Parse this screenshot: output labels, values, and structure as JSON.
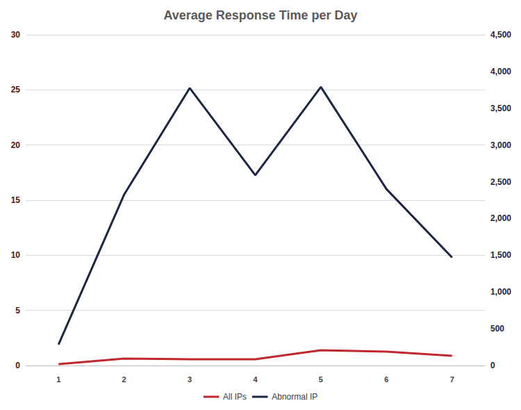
{
  "chart_data": {
    "type": "line",
    "title": "Average Response Time per Day",
    "categories": [
      "1",
      "2",
      "3",
      "4",
      "5",
      "6",
      "7"
    ],
    "series": [
      {
        "name": "All IPs",
        "color": "#c0262d",
        "values": [
          0.13,
          0.63,
          0.57,
          0.57,
          1.39,
          1.26,
          0.88
        ]
      },
      {
        "name": "Abnormal IP",
        "color": "#1c2541",
        "axis": "y2",
        "values": [
          285,
          2325,
          3775,
          2590,
          3790,
          2400,
          1470
        ]
      }
    ],
    "ylim": [
      0,
      30
    ],
    "yticks": [
      0,
      5,
      10,
      15,
      20,
      25,
      30
    ],
    "y2lim": [
      0,
      4500
    ],
    "y2ticks": [
      0,
      500,
      1000,
      1500,
      2000,
      2500,
      3000,
      3500,
      4000,
      4500
    ],
    "grid": true,
    "legend": "bottom"
  }
}
